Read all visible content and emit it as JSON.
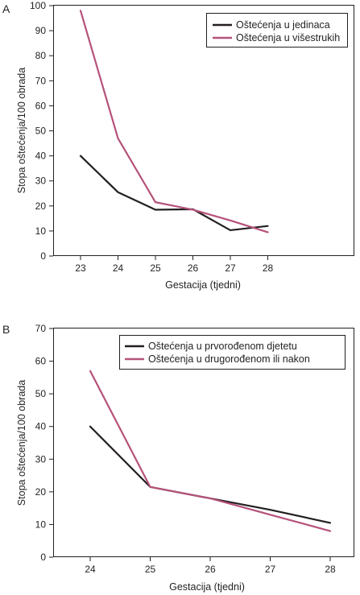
{
  "chart_data": [
    {
      "panel_label": "A",
      "type": "line",
      "x": [
        23,
        24,
        25,
        26,
        27,
        28
      ],
      "xlabel": "Gestacija (tjedni)",
      "ylabel": "Stopa oštećenja/100 obrada",
      "ylim": [
        0,
        100
      ],
      "yticks": [
        0,
        10,
        20,
        30,
        40,
        50,
        60,
        70,
        80,
        90,
        100
      ],
      "legend_position": "top-right",
      "grid": false,
      "series": [
        {
          "name": "Oštećenja u jedinaca",
          "color": "#231f20",
          "values": [
            40,
            25.5,
            18.5,
            18.7,
            10.3,
            12
          ]
        },
        {
          "name": "Oštećenja u višestrukih",
          "color": "#b5527a",
          "values": [
            98,
            47,
            21.5,
            18.5,
            14.2,
            9.5
          ]
        }
      ]
    },
    {
      "panel_label": "B",
      "type": "line",
      "x": [
        24,
        25,
        26,
        27,
        28
      ],
      "xlabel": "Gestacija (tjedni)",
      "ylabel": "Stopa oštećenja/100 obrada",
      "ylim": [
        0,
        70
      ],
      "yticks": [
        0,
        10,
        20,
        30,
        40,
        50,
        60,
        70
      ],
      "legend_position": "top-right",
      "grid": false,
      "series": [
        {
          "name": "Oštećenja u prvorođenom djetetu",
          "color": "#231f20",
          "values": [
            40,
            21.5,
            18,
            14.5,
            10.5
          ]
        },
        {
          "name": "Oštećenja u drugorođenom ili nakon",
          "color": "#b5527a",
          "values": [
            57,
            21.5,
            18,
            13,
            8
          ]
        }
      ]
    }
  ]
}
